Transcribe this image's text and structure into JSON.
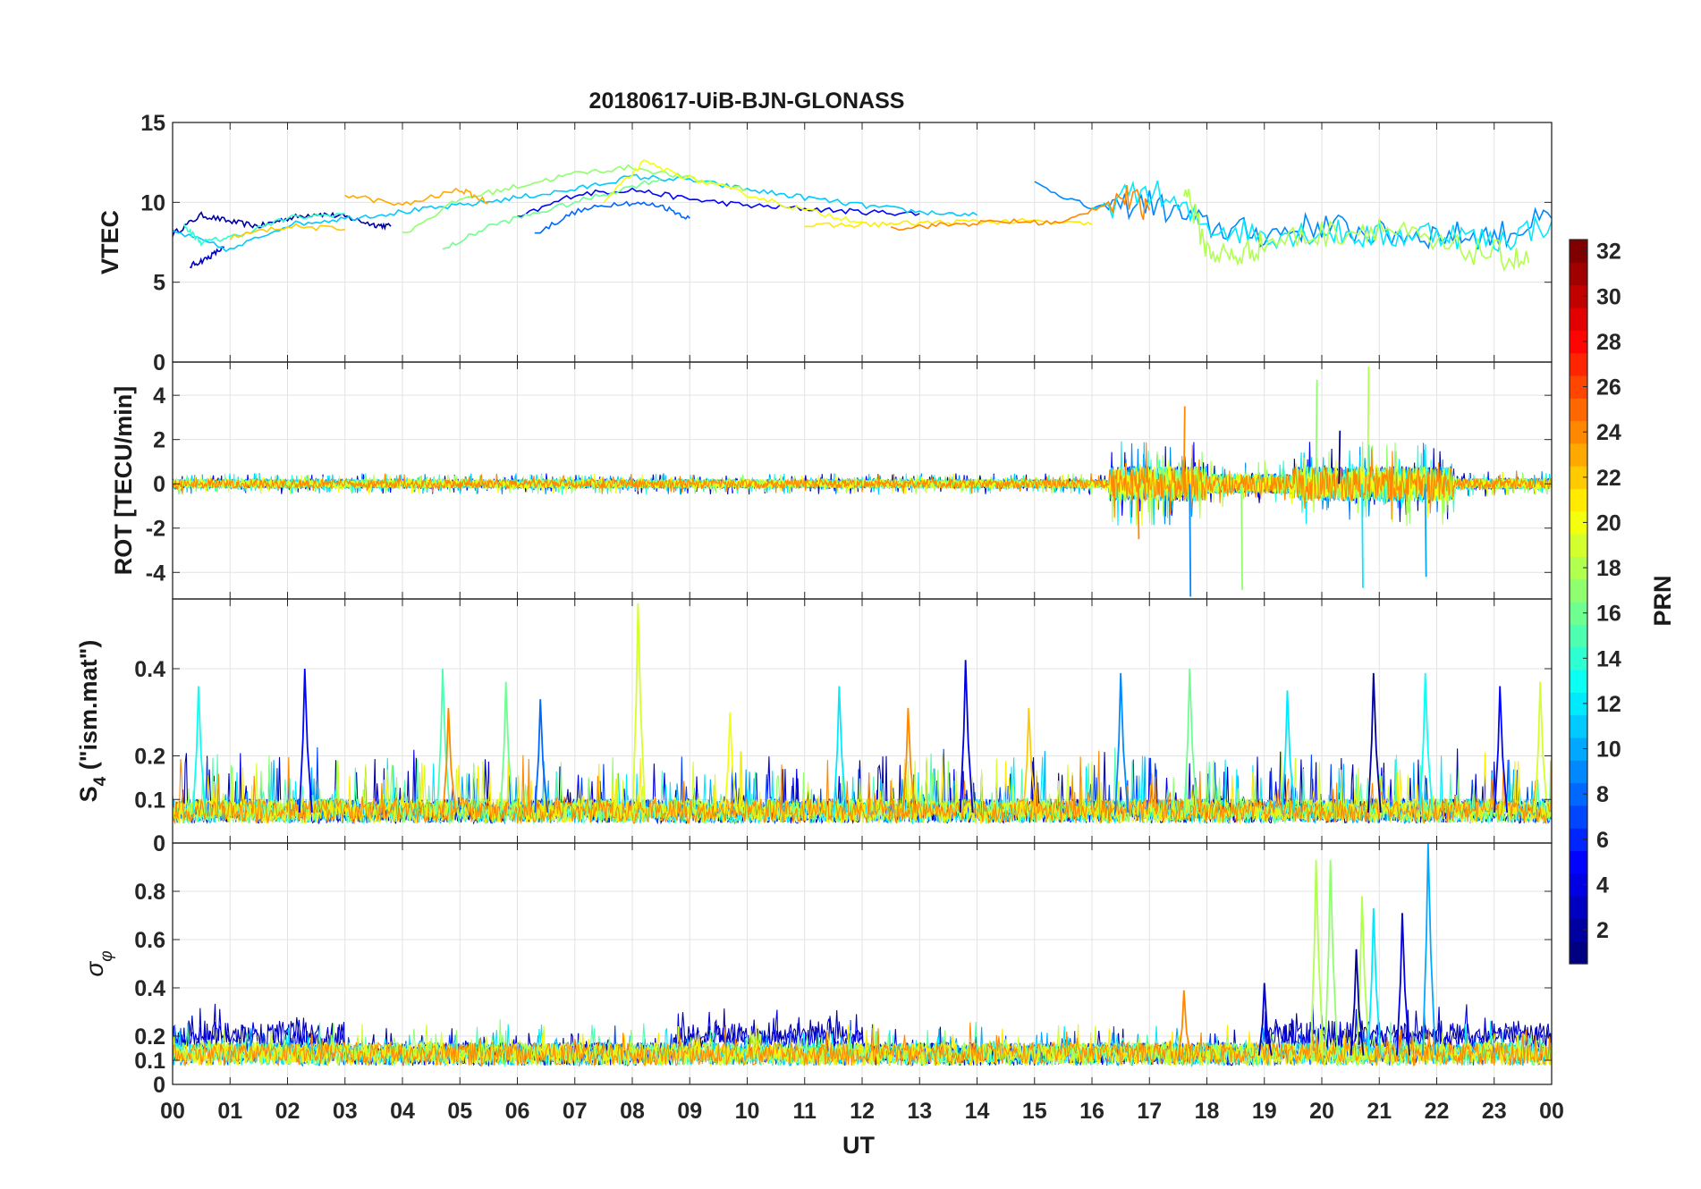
{
  "figure": {
    "title": "20180617-UiB-BJN-GLONASS",
    "xlabel": "UT",
    "x_tick_labels": [
      "00",
      "01",
      "02",
      "03",
      "04",
      "05",
      "06",
      "07",
      "08",
      "09",
      "10",
      "11",
      "12",
      "13",
      "14",
      "15",
      "16",
      "17",
      "18",
      "19",
      "20",
      "21",
      "22",
      "23",
      "00"
    ]
  },
  "colorbar": {
    "label": "PRN",
    "range": [
      1,
      32
    ],
    "tick_labels": [
      "2",
      "4",
      "6",
      "8",
      "10",
      "12",
      "14",
      "16",
      "18",
      "20",
      "22",
      "24",
      "26",
      "28",
      "30",
      "32"
    ],
    "colormap": "jet"
  },
  "chart_data": [
    {
      "type": "line",
      "panel": "VTEC",
      "ylabel": "VTEC",
      "ylim": [
        0,
        15
      ],
      "y_tick_labels": [
        "0",
        "5",
        "10",
        "15"
      ],
      "xlim": [
        0,
        24
      ],
      "grid": true,
      "series": [
        {
          "prn": 2,
          "x": [
            0,
            0.5,
            1,
            1.5,
            2,
            2.5,
            3,
            3.5,
            3.8
          ],
          "y": [
            8.0,
            9.2,
            8.8,
            8.5,
            9.0,
            9.3,
            9.1,
            8.6,
            8.5
          ]
        },
        {
          "prn": 3,
          "x": [
            0.3,
            0.6,
            0.9
          ],
          "y": [
            6.0,
            6.5,
            7.2
          ]
        },
        {
          "prn": 5,
          "x": [
            6,
            7,
            8,
            9,
            10,
            11,
            12,
            13
          ],
          "y": [
            9.0,
            10.5,
            10.8,
            10.2,
            9.8,
            9.6,
            9.4,
            9.3
          ]
        },
        {
          "prn": 8,
          "x": [
            6.3,
            7,
            7.8,
            8.5,
            9
          ],
          "y": [
            8.0,
            9.4,
            10.0,
            9.8,
            9.0
          ]
        },
        {
          "prn": 9,
          "x": [
            15,
            16,
            17,
            18,
            19,
            20,
            21,
            22,
            23,
            24
          ],
          "y": [
            11.2,
            9.6,
            10.0,
            8.5,
            8.0,
            8.6,
            8.0,
            8.0,
            7.9,
            9.0
          ]
        },
        {
          "prn": 11,
          "x": [
            0,
            1,
            2,
            3,
            4,
            5,
            6,
            7,
            8,
            9,
            10,
            11,
            12,
            13,
            14
          ],
          "y": [
            8.2,
            7.0,
            8.6,
            9.0,
            9.4,
            9.8,
            10.3,
            10.8,
            11.6,
            11.4,
            10.8,
            10.3,
            9.8,
            9.4,
            9.2
          ]
        },
        {
          "prn": 12,
          "x": [
            16,
            17,
            18,
            19,
            20,
            21,
            22,
            23,
            24
          ],
          "y": [
            9.5,
            10.8,
            8.5,
            8.0,
            8.2,
            7.8,
            8.2,
            7.5,
            8.8
          ]
        },
        {
          "prn": 14,
          "x": [
            0.2,
            0.5,
            1,
            2,
            3
          ],
          "y": [
            8.5,
            7.5,
            7.8,
            9.0,
            9.3
          ]
        },
        {
          "prn": 16,
          "x": [
            4.7,
            5.5,
            6.5,
            7.5,
            8.5
          ],
          "y": [
            7.0,
            8.5,
            9.5,
            10.5,
            11.5
          ]
        },
        {
          "prn": 17,
          "x": [
            4,
            5,
            6,
            7,
            8,
            9,
            10
          ],
          "y": [
            8.0,
            10.2,
            11.0,
            11.8,
            12.2,
            11.5,
            10.8
          ]
        },
        {
          "prn": 18,
          "x": [
            17.6,
            18,
            18.5,
            19,
            20,
            21,
            22,
            23,
            23.6
          ],
          "y": [
            11.2,
            7.0,
            6.5,
            7.5,
            8.0,
            8.5,
            7.2,
            6.8,
            6.2
          ]
        },
        {
          "prn": 20,
          "x": [
            7.5,
            8.2,
            9,
            10,
            11,
            12
          ],
          "y": [
            10.0,
            12.5,
            11.5,
            10.5,
            9.5,
            8.8
          ]
        },
        {
          "prn": 21,
          "x": [
            11,
            12,
            13,
            14,
            15,
            16
          ],
          "y": [
            8.5,
            8.6,
            8.7,
            8.8,
            8.8,
            8.6
          ]
        },
        {
          "prn": 22,
          "x": [
            1,
            2,
            3
          ],
          "y": [
            7.8,
            8.5,
            8.3
          ]
        },
        {
          "prn": 23,
          "x": [
            3,
            4,
            5,
            5.5
          ],
          "y": [
            10.5,
            9.8,
            10.8,
            10.0
          ]
        },
        {
          "prn": 24,
          "x": [
            12.5,
            13.5,
            14.5,
            15.5,
            16.5,
            17
          ],
          "y": [
            8.4,
            8.6,
            8.8,
            8.7,
            10.4,
            9.5
          ]
        }
      ]
    },
    {
      "type": "line",
      "panel": "ROT",
      "ylabel": "ROT [TECU/min]",
      "ylim": [
        -5.2,
        5.5
      ],
      "y_tick_labels": [
        "-4",
        "-2",
        "0",
        "2",
        "4"
      ],
      "xlim": [
        0,
        24
      ],
      "grid": true,
      "quiet_amplitude_range_UT": [
        0,
        16
      ],
      "quiet_amplitude": 0.4,
      "active_period_UT": [
        16.3,
        24
      ],
      "peaks": [
        {
          "prn": 24,
          "x": 16.8,
          "y": -2.5
        },
        {
          "prn": 24,
          "x": 17.6,
          "y": 3.5
        },
        {
          "prn": 9,
          "x": 17.7,
          "y": -5.1
        },
        {
          "prn": 17,
          "x": 18.6,
          "y": -4.8
        },
        {
          "prn": 17,
          "x": 19.9,
          "y": 4.7
        },
        {
          "prn": 18,
          "x": 20.8,
          "y": 5.3
        },
        {
          "prn": 12,
          "x": 20.7,
          "y": -4.7
        },
        {
          "prn": 2,
          "x": 20.3,
          "y": 2.4
        },
        {
          "prn": 10,
          "x": 21.8,
          "y": -4.2
        }
      ]
    },
    {
      "type": "line",
      "panel": "S4",
      "ylabel": "S4 (\"ism.mat\")",
      "ylabel_main": "S",
      "ylabel_sub": "4",
      "ylabel_rest": " (\"ism.mat\")",
      "ylim": [
        0,
        0.56
      ],
      "y_tick_labels": [
        "0",
        "0.1",
        "0.2",
        "0.4"
      ],
      "xlim": [
        0,
        24
      ],
      "grid": true,
      "baseline": 0.07,
      "spikes": [
        {
          "prn": 13,
          "x": 0.45,
          "y": 0.36
        },
        {
          "prn": 5,
          "x": 2.3,
          "y": 0.4
        },
        {
          "prn": 15,
          "x": 4.7,
          "y": 0.4
        },
        {
          "prn": 24,
          "x": 4.8,
          "y": 0.31
        },
        {
          "prn": 16,
          "x": 5.8,
          "y": 0.37
        },
        {
          "prn": 8,
          "x": 6.4,
          "y": 0.33
        },
        {
          "prn": 19,
          "x": 8.1,
          "y": 0.55
        },
        {
          "prn": 20,
          "x": 9.7,
          "y": 0.3
        },
        {
          "prn": 12,
          "x": 11.6,
          "y": 0.36
        },
        {
          "prn": 24,
          "x": 12.8,
          "y": 0.31
        },
        {
          "prn": 4,
          "x": 13.8,
          "y": 0.42
        },
        {
          "prn": 22,
          "x": 14.9,
          "y": 0.31
        },
        {
          "prn": 9,
          "x": 16.5,
          "y": 0.39
        },
        {
          "prn": 16,
          "x": 17.7,
          "y": 0.4
        },
        {
          "prn": 12,
          "x": 19.4,
          "y": 0.35
        },
        {
          "prn": 2,
          "x": 20.9,
          "y": 0.39
        },
        {
          "prn": 13,
          "x": 21.8,
          "y": 0.39
        },
        {
          "prn": 5,
          "x": 23.1,
          "y": 0.36
        },
        {
          "prn": 19,
          "x": 23.8,
          "y": 0.37
        }
      ]
    },
    {
      "type": "line",
      "panel": "sigma_phi",
      "ylabel": "σ φ",
      "ylabel_main": "σ",
      "ylabel_sub": "φ",
      "ylim": [
        0,
        1
      ],
      "y_tick_labels": [
        "0",
        "0.1",
        "0.2",
        "0.4",
        "0.6",
        "0.8"
      ],
      "xlim": [
        0,
        24
      ],
      "grid": true,
      "baseline": 0.12,
      "spikes": [
        {
          "prn": 18,
          "x": 19.9,
          "y": 0.93
        },
        {
          "prn": 17,
          "x": 20.15,
          "y": 0.93
        },
        {
          "prn": 18,
          "x": 20.7,
          "y": 0.78
        },
        {
          "prn": 12,
          "x": 20.9,
          "y": 0.73
        },
        {
          "prn": 4,
          "x": 21.4,
          "y": 0.71
        },
        {
          "prn": 10,
          "x": 21.85,
          "y": 1.0
        },
        {
          "prn": 24,
          "x": 17.6,
          "y": 0.39
        },
        {
          "prn": 3,
          "x": 19.0,
          "y": 0.42
        },
        {
          "prn": 2,
          "x": 20.6,
          "y": 0.56
        }
      ]
    }
  ]
}
